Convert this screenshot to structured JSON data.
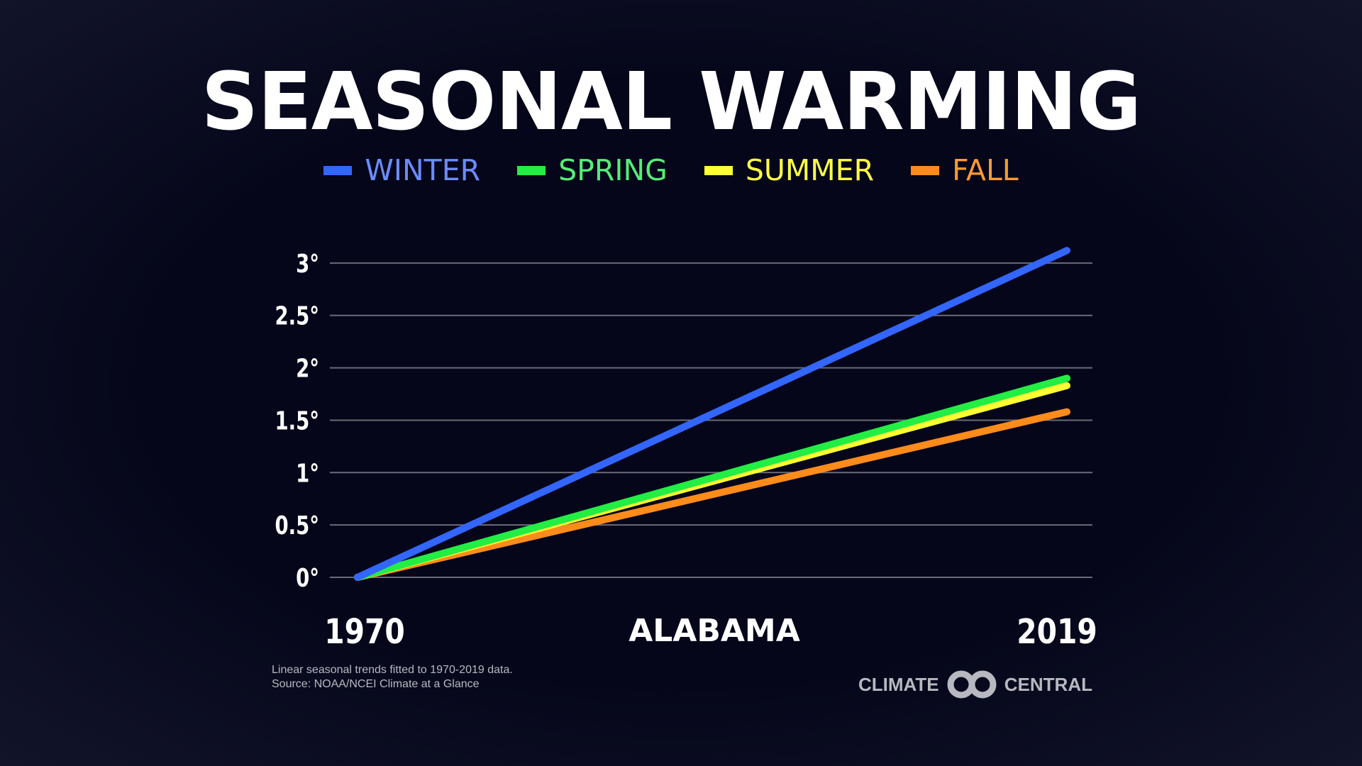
{
  "chart_data": {
    "type": "line",
    "title": "SEASONAL WARMING",
    "subtitle": "ALABAMA",
    "x": [
      1970,
      2019
    ],
    "x_tick_labels": [
      "1970",
      "2019"
    ],
    "y_tick_labels": [
      "0°",
      "0.5°",
      "1°",
      "1.5°",
      "2°",
      "2.5°",
      "3°"
    ],
    "y_ticks": [
      0,
      0.5,
      1,
      1.5,
      2,
      2.5,
      3
    ],
    "ylim": [
      0,
      3
    ],
    "grid": true,
    "legend_placement": "top",
    "series": [
      {
        "name": "WINTER",
        "values": [
          0,
          3.12
        ],
        "color": "#3366ff",
        "label_color": "#6b8cff"
      },
      {
        "name": "SPRING",
        "values": [
          0,
          1.9
        ],
        "color": "#22ee44",
        "label_color": "#55ee77"
      },
      {
        "name": "SUMMER",
        "values": [
          0,
          1.83
        ],
        "color": "#ffff33",
        "label_color": "#ffff44"
      },
      {
        "name": "FALL",
        "values": [
          0,
          1.58
        ],
        "color": "#ff8c1a",
        "label_color": "#ff9a33"
      }
    ]
  },
  "footnote": {
    "line1": "Linear seasonal trends fitted to 1970-2019 data.",
    "line2": "Source: NOAA/NCEI Climate at a Glance"
  },
  "logo": {
    "left": "CLIMATE",
    "right": "CENTRAL"
  }
}
